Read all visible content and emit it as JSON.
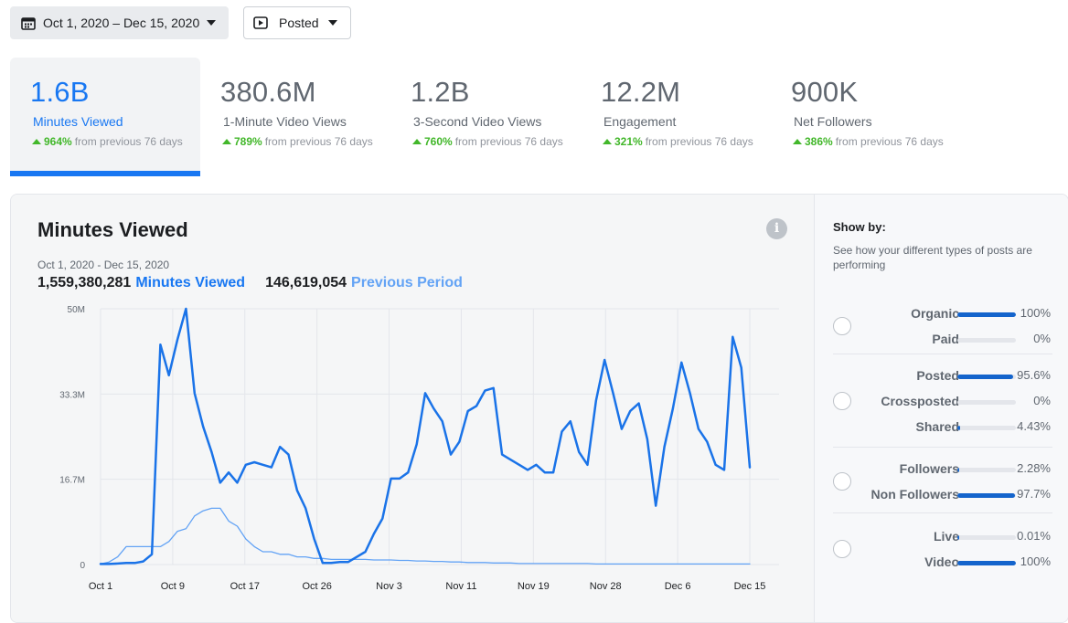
{
  "toolbar": {
    "date_range": "Oct 1, 2020 – Dec 15, 2020",
    "filter_label": "Posted",
    "icons": [
      "calendar-icon",
      "play-icon",
      "caret-down-icon"
    ]
  },
  "metrics": [
    {
      "value": "1.6B",
      "label": "Minutes Viewed",
      "change": "964%",
      "change_text": "from previous 76 days",
      "active": true
    },
    {
      "value": "380.6M",
      "label": "1-Minute Video Views",
      "change": "789%",
      "change_text": "from previous 76 days",
      "active": false
    },
    {
      "value": "1.2B",
      "label": "3-Second Video Views",
      "change": "760%",
      "change_text": "from previous 76 days",
      "active": false
    },
    {
      "value": "12.2M",
      "label": "Engagement",
      "change": "321%",
      "change_text": "from previous 76 days",
      "active": false
    },
    {
      "value": "900K",
      "label": "Net Followers",
      "change": "386%",
      "change_text": "from previous 76 days",
      "active": false
    }
  ],
  "chart_panel": {
    "title": "Minutes Viewed",
    "date_range": "Oct 1, 2020 - Dec 15, 2020",
    "total_value": "1,559,380,281",
    "total_label": "Minutes Viewed",
    "previous_value": "146,619,054",
    "previous_label": "Previous Period"
  },
  "chart_data": {
    "type": "line",
    "x_tick_labels": [
      "Oct 1",
      "Oct 9",
      "Oct 17",
      "Oct 26",
      "Nov 3",
      "Nov 11",
      "Nov 19",
      "Nov 28",
      "Dec 6",
      "Dec 15"
    ],
    "y_tick_labels": [
      "0",
      "16.7M",
      "33.3M",
      "50M"
    ],
    "ylim": [
      0,
      50
    ],
    "y_unit": "M",
    "grid": true,
    "colors": {
      "current": "#1a73e8",
      "previous": "#63a3f5"
    },
    "series": [
      {
        "name": "Minutes Viewed",
        "values": [
          0.1,
          0.1,
          0.2,
          0.3,
          0.3,
          0.6,
          2.0,
          43.0,
          37.0,
          44.0,
          50.0,
          33.5,
          27.0,
          22.0,
          16.0,
          18.0,
          16.0,
          19.5,
          20.0,
          19.5,
          19.0,
          23.0,
          21.5,
          14.5,
          11.0,
          5.0,
          0.3,
          0.3,
          0.5,
          0.5,
          1.5,
          2.5,
          6.0,
          9.0,
          16.8,
          16.8,
          18.0,
          23.5,
          33.5,
          30.5,
          28.0,
          21.5,
          24.0,
          30.0,
          31.0,
          34.0,
          34.5,
          21.5,
          20.5,
          19.5,
          18.5,
          19.5,
          18.0,
          18.0,
          26.0,
          28.0,
          22.0,
          19.5,
          32.0,
          40.0,
          33.5,
          26.5,
          30.0,
          31.5,
          24.5,
          11.5,
          23.0,
          30.5,
          39.5,
          33.5,
          26.5,
          24.0,
          19.5,
          18.5,
          44.5,
          38.5,
          19.0
        ]
      },
      {
        "name": "Previous Period",
        "values": [
          0.1,
          0.5,
          1.5,
          3.5,
          3.5,
          3.5,
          3.5,
          3.5,
          4.5,
          6.5,
          7.0,
          9.5,
          10.5,
          11.0,
          11.0,
          8.5,
          7.5,
          5.0,
          3.5,
          2.5,
          2.5,
          2.0,
          2.0,
          1.5,
          1.5,
          1.2,
          1.2,
          1.0,
          1.0,
          1.0,
          1.0,
          1.0,
          0.9,
          0.9,
          0.9,
          0.8,
          0.8,
          0.7,
          0.7,
          0.6,
          0.6,
          0.5,
          0.5,
          0.4,
          0.4,
          0.4,
          0.3,
          0.3,
          0.3,
          0.2,
          0.2,
          0.2,
          0.2,
          0.2,
          0.2,
          0.2,
          0.2,
          0.2,
          0.1,
          0.1,
          0.1,
          0.1,
          0.1,
          0.1,
          0.1,
          0.1,
          0.1,
          0.1,
          0.1,
          0.1,
          0.1,
          0.1,
          0.1,
          0.1,
          0.1,
          0.1,
          0.1
        ]
      }
    ]
  },
  "show_by": {
    "title": "Show by:",
    "description": "See how your different types of posts are performing",
    "groups": [
      {
        "rows": [
          {
            "label": "Organic",
            "value": "100%",
            "fill": 1.0
          },
          {
            "label": "Paid",
            "value": "0%",
            "fill": 0.0
          }
        ]
      },
      {
        "rows": [
          {
            "label": "Posted",
            "value": "95.6%",
            "fill": 0.956
          },
          {
            "label": "Crossposted",
            "value": "0%",
            "fill": 0.0
          },
          {
            "label": "Shared",
            "value": "4.43%",
            "fill": 0.0443
          }
        ]
      },
      {
        "rows": [
          {
            "label": "Followers",
            "value": "2.28%",
            "fill": 0.0228
          },
          {
            "label": "Non Followers",
            "value": "97.7%",
            "fill": 0.977
          }
        ]
      },
      {
        "rows": [
          {
            "label": "Live",
            "value": "0.01%",
            "fill": 0.0001
          },
          {
            "label": "Video",
            "value": "100%",
            "fill": 1.0
          }
        ]
      }
    ]
  }
}
